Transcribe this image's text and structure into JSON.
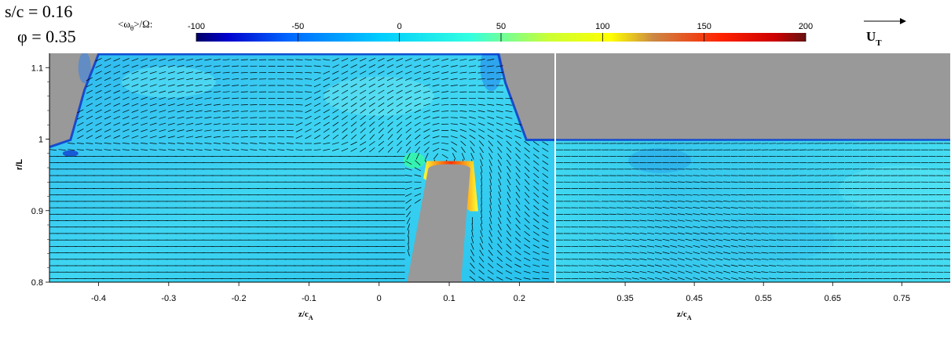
{
  "header": {
    "sc_label": "s/c = 0.16",
    "phi_label": "φ = 0.35",
    "colorbar_var": "<ω",
    "colorbar_sub": "θ",
    "colorbar_den": ">/Ω:",
    "ref_vector": "U",
    "ref_vector_sub": "T"
  },
  "colorbar": {
    "ticks": [
      "-100",
      "-50",
      "0",
      "50",
      "100",
      "150",
      "200"
    ],
    "range": [
      -100,
      200
    ],
    "colors": [
      "#000066",
      "#0000cc",
      "#0066ff",
      "#00ccff",
      "#33ffe0",
      "#ccff33",
      "#ffff00",
      "#cc8844",
      "#ff2200",
      "#cc0000",
      "#661111"
    ]
  },
  "chart_data": [
    {
      "type": "heatmap",
      "panel": "left",
      "xlabel": "z/c",
      "xlabel_sub": "A",
      "ylabel": "r/L",
      "xlim": [
        -0.47,
        0.25
      ],
      "ylim": [
        0.8,
        1.12
      ],
      "xticks": [
        "-0.4",
        "-0.3",
        "-0.2",
        "-0.1",
        "0",
        "0.1",
        "0.2"
      ],
      "xtick_values": [
        -0.4,
        -0.3,
        -0.2,
        -0.1,
        0,
        0.1,
        0.2
      ],
      "yticks": [
        "1.1",
        "1",
        "0.9",
        "0.8"
      ],
      "ytick_values": [
        1.1,
        1.0,
        0.9,
        0.8
      ],
      "background_value": 5,
      "casing_profile": [
        [
          -0.47,
          0.99
        ],
        [
          -0.44,
          1.0
        ],
        [
          -0.42,
          1.07
        ],
        [
          -0.4,
          1.12
        ],
        [
          0.17,
          1.12
        ],
        [
          0.18,
          1.08
        ],
        [
          0.21,
          1.0
        ],
        [
          0.25,
          1.0
        ]
      ],
      "blade_tip": {
        "z_left_root": 0.04,
        "z_right_root": 0.11,
        "z_left_tip": 0.07,
        "z_right_tip": 0.13,
        "r_tip": 0.965
      },
      "vectors": "uniform axial flow, swirling around blade tip"
    },
    {
      "type": "heatmap",
      "panel": "right",
      "xlabel": "z/c",
      "xlabel_sub": "A",
      "xlim": [
        0.25,
        0.82
      ],
      "ylim": [
        0.8,
        1.12
      ],
      "xticks": [
        "0.35",
        "0.45",
        "0.55",
        "0.65",
        "0.75"
      ],
      "xtick_values": [
        0.35,
        0.45,
        0.55,
        0.65,
        0.75
      ],
      "casing_r": 1.0,
      "background_value": 5,
      "vectors": "axial flow with downstream deflection"
    }
  ]
}
